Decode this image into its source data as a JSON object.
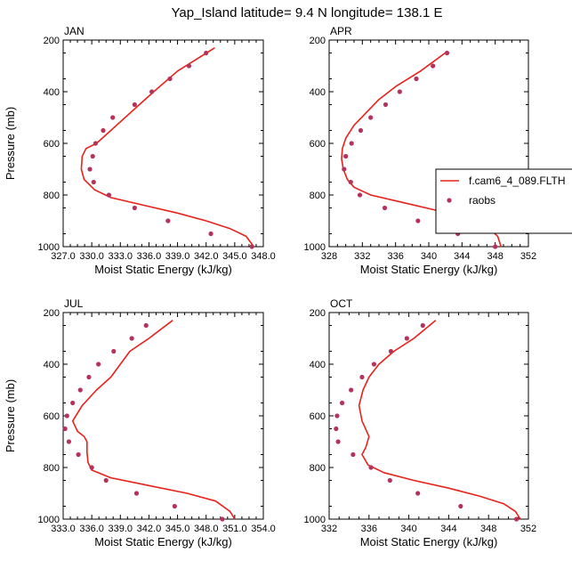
{
  "figure": {
    "title": "Yap_Island  latitude= 9.4 N longitude= 138.1 E"
  },
  "legend": {
    "placement": "right",
    "entries": [
      {
        "label": "f.cam6_4_089.FLTH",
        "style": "line",
        "color": "#e8211a"
      },
      {
        "label": "raobs",
        "style": "marker",
        "color": "#b5335a"
      }
    ]
  },
  "chart_data": [
    {
      "type": "line",
      "panel_label": "JAN",
      "xlabel": "Moist Static Energy (kJ/kg)",
      "ylabel": "Pressure (mb)",
      "xlim": [
        327.0,
        348.0
      ],
      "ylim": [
        200,
        1000
      ],
      "y_inverted": true,
      "xticks": [
        "327.0",
        "330.0",
        "333.0",
        "336.0",
        "339.0",
        "342.0",
        "345.0",
        "348.0"
      ],
      "yticks": [
        "200",
        "400",
        "600",
        "800",
        "1000"
      ],
      "series": [
        {
          "name": "f.cam6_4_089.FLTH",
          "kind": "line",
          "color": "#e8211a",
          "x": [
            342.9,
            339.0,
            336.5,
            335.0,
            333.5,
            332.0,
            330.5,
            329.4,
            329.0,
            328.9,
            329.2,
            330.3,
            332.0,
            335.5,
            339.0,
            342.0,
            344.5,
            346.2,
            347.0
          ],
          "y": [
            230,
            320,
            400,
            450,
            500,
            550,
            600,
            620,
            650,
            700,
            740,
            780,
            810,
            840,
            870,
            900,
            930,
            960,
            1000
          ]
        },
        {
          "name": "raobs",
          "kind": "scatter",
          "color": "#b5335a",
          "x": [
            342.0,
            340.2,
            338.2,
            336.3,
            334.5,
            332.2,
            331.2,
            330.4,
            330.1,
            329.8,
            330.2,
            331.8,
            334.5,
            338.0,
            342.5,
            346.8
          ],
          "y": [
            250,
            300,
            350,
            400,
            450,
            500,
            550,
            600,
            650,
            700,
            750,
            800,
            850,
            900,
            950,
            1000
          ]
        }
      ]
    },
    {
      "type": "line",
      "panel_label": "APR",
      "xlabel": "Moist Static Energy (kJ/kg)",
      "ylabel": "",
      "xlim": [
        328,
        352
      ],
      "ylim": [
        200,
        1000
      ],
      "y_inverted": true,
      "xticks": [
        "328",
        "332",
        "336",
        "340",
        "344",
        "348",
        "352"
      ],
      "yticks": [
        "200",
        "400",
        "600",
        "800",
        "1000"
      ],
      "series": [
        {
          "name": "f.cam6_4_089.FLTH",
          "kind": "line",
          "color": "#e8211a",
          "x": [
            342.2,
            339.0,
            336.0,
            334.0,
            332.5,
            331.0,
            330.0,
            329.6,
            329.5,
            329.7,
            330.2,
            331.0,
            333.0,
            337.0,
            341.0,
            344.5,
            347.0,
            348.3,
            348.7
          ],
          "y": [
            245,
            320,
            380,
            430,
            480,
            530,
            580,
            620,
            660,
            700,
            740,
            770,
            800,
            830,
            860,
            890,
            920,
            960,
            1000
          ]
        },
        {
          "name": "raobs",
          "kind": "scatter",
          "color": "#b5335a",
          "x": [
            342.2,
            340.5,
            338.5,
            336.5,
            334.8,
            333.0,
            331.8,
            330.7,
            330.0,
            329.8,
            330.6,
            331.7,
            334.7,
            338.7,
            343.5,
            348.0
          ],
          "y": [
            250,
            300,
            350,
            400,
            450,
            500,
            550,
            600,
            650,
            700,
            750,
            800,
            850,
            900,
            950,
            1000
          ]
        }
      ]
    },
    {
      "type": "line",
      "panel_label": "JUL",
      "xlabel": "Moist Static Energy (kJ/kg)",
      "ylabel": "Pressure (mb)",
      "xlim": [
        333.0,
        354.0
      ],
      "ylim": [
        200,
        1000
      ],
      "y_inverted": true,
      "xticks": [
        "333.0",
        "336.0",
        "339.0",
        "342.0",
        "345.0",
        "348.0",
        "351.0",
        "354.0"
      ],
      "yticks": [
        "200",
        "400",
        "600",
        "800",
        "1000"
      ],
      "series": [
        {
          "name": "f.cam6_4_089.FLTH",
          "kind": "line",
          "color": "#e8211a",
          "x": [
            344.5,
            342.0,
            340.0,
            339.0,
            338.0,
            336.5,
            335.0,
            334.0,
            334.5,
            335.2,
            335.5,
            335.5,
            335.6,
            336.0,
            338.0,
            342.0,
            346.0,
            349.0,
            350.5,
            351.0
          ],
          "y": [
            230,
            300,
            350,
            400,
            450,
            500,
            560,
            620,
            660,
            680,
            700,
            740,
            780,
            810,
            840,
            870,
            900,
            930,
            970,
            1000
          ]
        },
        {
          "name": "raobs",
          "kind": "scatter",
          "color": "#b5335a",
          "x": [
            341.7,
            340.2,
            338.3,
            336.7,
            335.7,
            334.8,
            334.0,
            333.4,
            333.2,
            333.6,
            334.6,
            336.0,
            337.5,
            340.7,
            344.7,
            349.7
          ],
          "y": [
            250,
            300,
            350,
            400,
            450,
            500,
            550,
            600,
            650,
            700,
            750,
            800,
            850,
            900,
            950,
            1000
          ]
        }
      ]
    },
    {
      "type": "line",
      "panel_label": "OCT",
      "xlabel": "Moist Static Energy (kJ/kg)",
      "ylabel": "",
      "xlim": [
        332,
        352
      ],
      "ylim": [
        200,
        1000
      ],
      "y_inverted": true,
      "xticks": [
        "332",
        "336",
        "340",
        "344",
        "348",
        "352"
      ],
      "yticks": [
        "200",
        "400",
        "600",
        "800",
        "1000"
      ],
      "series": [
        {
          "name": "f.cam6_4_089.FLTH",
          "kind": "line",
          "color": "#e8211a",
          "x": [
            342.7,
            340.5,
            338.5,
            337.0,
            336.0,
            335.4,
            335.0,
            335.3,
            336.0,
            335.7,
            335.3,
            335.9,
            337.5,
            340.5,
            344.0,
            347.0,
            349.5,
            350.7,
            351.2
          ],
          "y": [
            230,
            300,
            350,
            400,
            450,
            500,
            560,
            620,
            680,
            720,
            750,
            790,
            820,
            850,
            880,
            910,
            940,
            970,
            1000
          ]
        },
        {
          "name": "raobs",
          "kind": "scatter",
          "color": "#b5335a",
          "x": [
            341.4,
            339.8,
            338.2,
            336.5,
            335.3,
            334.2,
            333.3,
            332.8,
            332.7,
            332.9,
            334.4,
            336.2,
            338.1,
            340.9,
            345.2,
            350.8
          ],
          "y": [
            250,
            300,
            350,
            400,
            450,
            500,
            550,
            600,
            650,
            700,
            750,
            800,
            850,
            900,
            950,
            1000
          ]
        }
      ]
    }
  ]
}
